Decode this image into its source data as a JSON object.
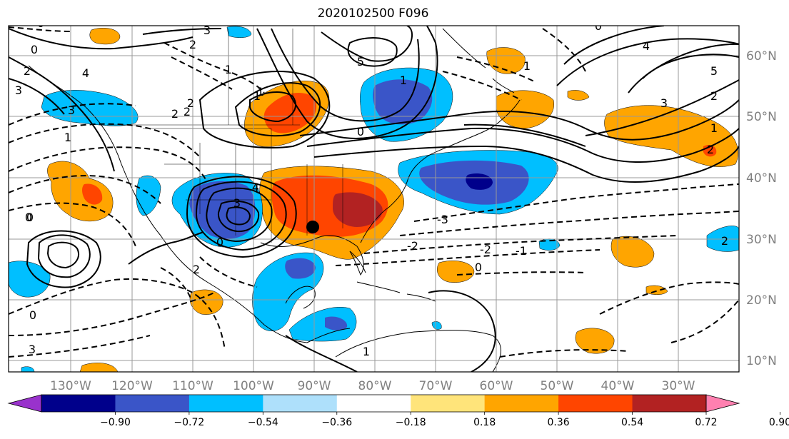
{
  "map": {
    "title": "2020102500 F096",
    "lon_labels": [
      "130°W",
      "120°W",
      "110°W",
      "100°W",
      "90°W",
      "80°W",
      "70°W",
      "60°W",
      "50°W",
      "40°W",
      "30°W"
    ],
    "lat_labels": [
      "60°N",
      "50°N",
      "40°N",
      "30°N",
      "20°N",
      "10°N"
    ],
    "contour_labels": [
      "0",
      "3",
      "2",
      "1",
      "0",
      "3",
      "2",
      "5",
      "1",
      "4",
      "0",
      "5",
      "1",
      "3",
      "2",
      "1",
      "0",
      "2",
      "4",
      "0",
      "3",
      "2",
      "2",
      "1",
      "0",
      "0",
      "-3",
      "-2",
      "-2",
      "-1",
      "0",
      "2",
      "0",
      "1",
      "3",
      "2",
      "2",
      "1",
      "1",
      "4",
      "3"
    ]
  },
  "colorbar": {
    "ticks": [
      "−0.90",
      "−0.72",
      "−0.54",
      "−0.36",
      "−0.18",
      "0.18",
      "0.36",
      "0.54",
      "0.72",
      "0.90"
    ],
    "colors": [
      "#9932CC",
      "#00008B",
      "#3A55C8",
      "#00BFFF",
      "#AEE0FB",
      "#FFFFFF",
      "#FFE47A",
      "#FFA500",
      "#FF4500",
      "#B22222",
      "#FF80B0"
    ]
  },
  "chart_data": {
    "type": "map",
    "title": "2020102500 F096",
    "lon_ticks": [
      "130°W",
      "120°W",
      "110°W",
      "100°W",
      "90°W",
      "80°W",
      "70°W",
      "60°W",
      "50°W",
      "40°W",
      "30°W"
    ],
    "lat_ticks": [
      "60°N",
      "50°N",
      "40°N",
      "30°N",
      "20°N",
      "10°N"
    ],
    "lon_range": [
      -140,
      -20
    ],
    "lat_range": [
      7.5,
      65
    ],
    "grid": true,
    "colorbar_levels": [
      -0.9,
      -0.72,
      -0.54,
      -0.36,
      -0.18,
      0.18,
      0.36,
      0.54,
      0.72,
      0.9
    ],
    "colorbar_extend": "both",
    "marker": {
      "name": "storm-center",
      "lon": -89.5,
      "lat": 31.5
    }
  }
}
